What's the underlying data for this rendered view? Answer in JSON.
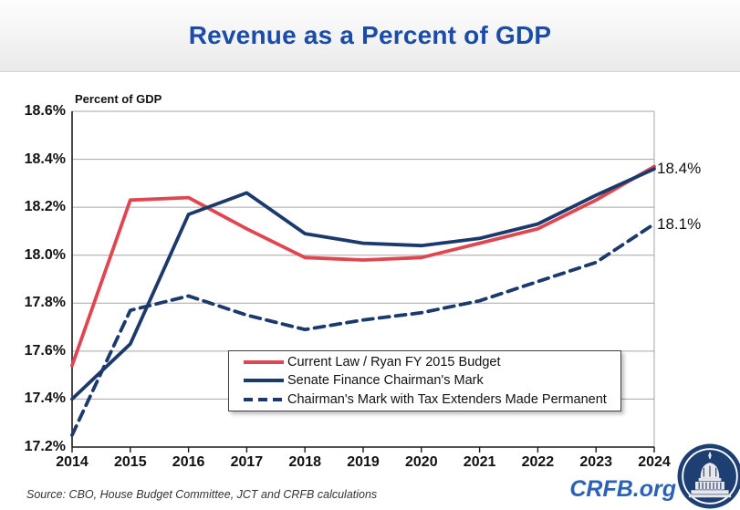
{
  "header": {
    "title": "Revenue as a Percent of GDP"
  },
  "chart_data": {
    "type": "line",
    "title": "Revenue as a Percent of GDP",
    "ylabel": "Percent of GDP",
    "xlabel": "",
    "ylim": [
      17.2,
      18.6
    ],
    "grid": true,
    "legend_position": "inside-bottom-center",
    "categories": [
      "2014",
      "2015",
      "2016",
      "2017",
      "2018",
      "2019",
      "2020",
      "2021",
      "2022",
      "2023",
      "2024"
    ],
    "yticks": [
      {
        "label": "17.2%",
        "value": 17.2
      },
      {
        "label": "17.4%",
        "value": 17.4
      },
      {
        "label": "17.6%",
        "value": 17.6
      },
      {
        "label": "17.8%",
        "value": 17.8
      },
      {
        "label": "18.0%",
        "value": 18.0
      },
      {
        "label": "18.2%",
        "value": 18.2
      },
      {
        "label": "18.4%",
        "value": 18.4
      },
      {
        "label": "18.6%",
        "value": 18.6
      }
    ],
    "series": [
      {
        "id": "current-law",
        "name": "Current Law / Ryan FY 2015 Budget",
        "color": "#df4650",
        "dashed": false,
        "values": [
          17.54,
          18.23,
          18.24,
          18.11,
          17.99,
          17.98,
          17.99,
          18.05,
          18.11,
          18.23,
          18.37
        ]
      },
      {
        "id": "senate-finance",
        "name": "Senate Finance Chairman's Mark",
        "color": "#1b3a6b",
        "dashed": false,
        "values": [
          17.4,
          17.63,
          18.17,
          18.26,
          18.09,
          18.05,
          18.04,
          18.07,
          18.13,
          18.25,
          18.36
        ]
      },
      {
        "id": "extenders-permanent",
        "name": "Chairman's Mark with Tax Extenders Made Permanent",
        "color": "#1b3a6b",
        "dashed": true,
        "values": [
          17.25,
          17.77,
          17.83,
          17.75,
          17.69,
          17.73,
          17.76,
          17.81,
          17.89,
          17.97,
          18.13
        ]
      }
    ],
    "end_labels": [
      {
        "text": "18.4%",
        "series_index": 1
      },
      {
        "text": "18.1%",
        "series_index": 2
      }
    ]
  },
  "footer": {
    "source": "Source: CBO, House Budget Committee, JCT and CRFB calculations",
    "brand": "CRFB.org"
  },
  "colors": {
    "title_blue": "#1b4da8",
    "brand_blue": "#2b62b5",
    "red_line": "#df4650",
    "navy_line": "#1b3a6b",
    "gridline": "#a6a6a6"
  }
}
